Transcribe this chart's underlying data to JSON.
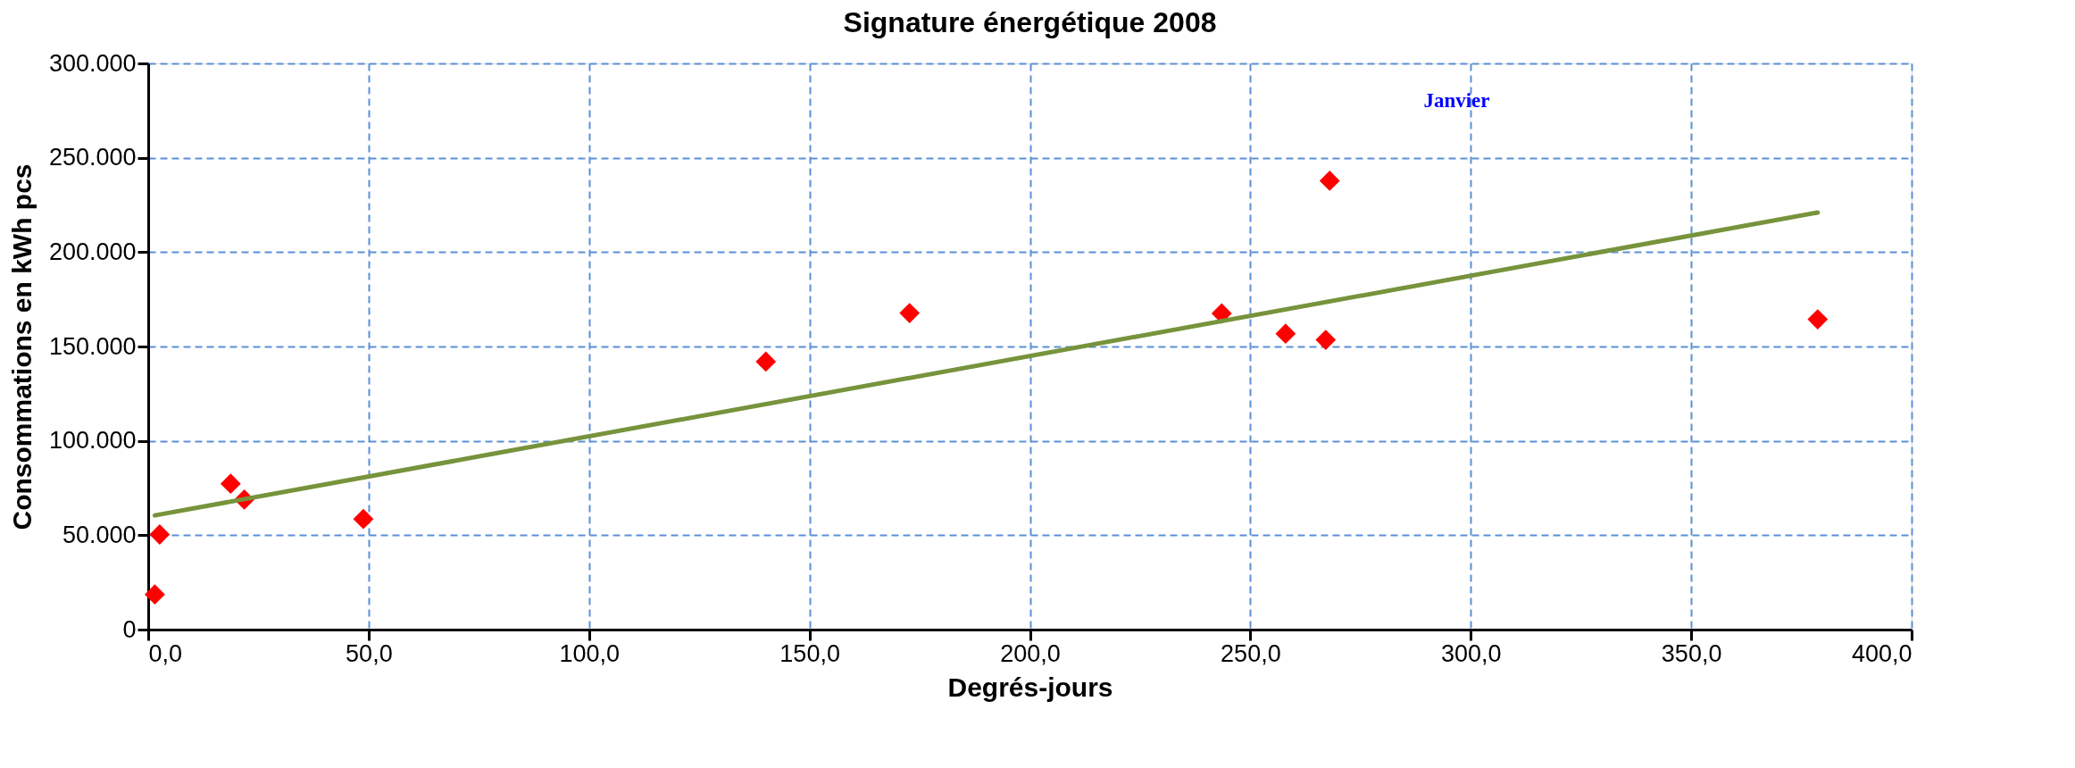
{
  "chart_data": {
    "type": "scatter",
    "title": "Signature énergétique 2008",
    "xlabel": "Degrés-jours",
    "ylabel": "Consommations en kWh pcs",
    "series": [
      {
        "color": "#ff0000",
        "marker": "diamond",
        "x": [
          1.5,
          2.6,
          18.7,
          21.8,
          48.8,
          140.1,
          172.7,
          243.5,
          258.0,
          267.1,
          268.0,
          378.7
        ],
        "values": [
          18600,
          50400,
          77300,
          68900,
          58600,
          142000,
          167700,
          167500,
          156800,
          153500,
          237800,
          164400
        ]
      },
      {
        "type": "line",
        "color": "#77933c",
        "marker": "none",
        "line_style": "solid",
        "x": [
          1.5,
          378.7
        ],
        "values": [
          60500,
          221000
        ]
      }
    ],
    "annotations": [
      "Janvier"
    ],
    "xlim": [
      0,
      400
    ],
    "ylim": [
      0,
      300000
    ],
    "xticks": [
      {
        "value": 0,
        "label": "0,0"
      },
      {
        "value": 50,
        "label": "50,0"
      },
      {
        "value": 100,
        "label": "100,0"
      },
      {
        "value": 150,
        "label": "150,0"
      },
      {
        "value": 200,
        "label": "200,0"
      },
      {
        "value": 250,
        "label": "250,0"
      },
      {
        "value": 300,
        "label": "300,0"
      },
      {
        "value": 350,
        "label": "350,0"
      },
      {
        "value": 400,
        "label": "400,0"
      }
    ],
    "yticks": [
      0,
      {
        "value": 50000,
        "label": "50.000"
      },
      {
        "value": 100000,
        "label": "100.000"
      },
      {
        "value": 150000,
        "label": "150.000"
      },
      {
        "value": 200000,
        "label": "200.000"
      },
      {
        "value": 250000,
        "label": "250.000"
      },
      {
        "value": 300000,
        "label": "300.000"
      }
    ],
    "grid": true
  }
}
